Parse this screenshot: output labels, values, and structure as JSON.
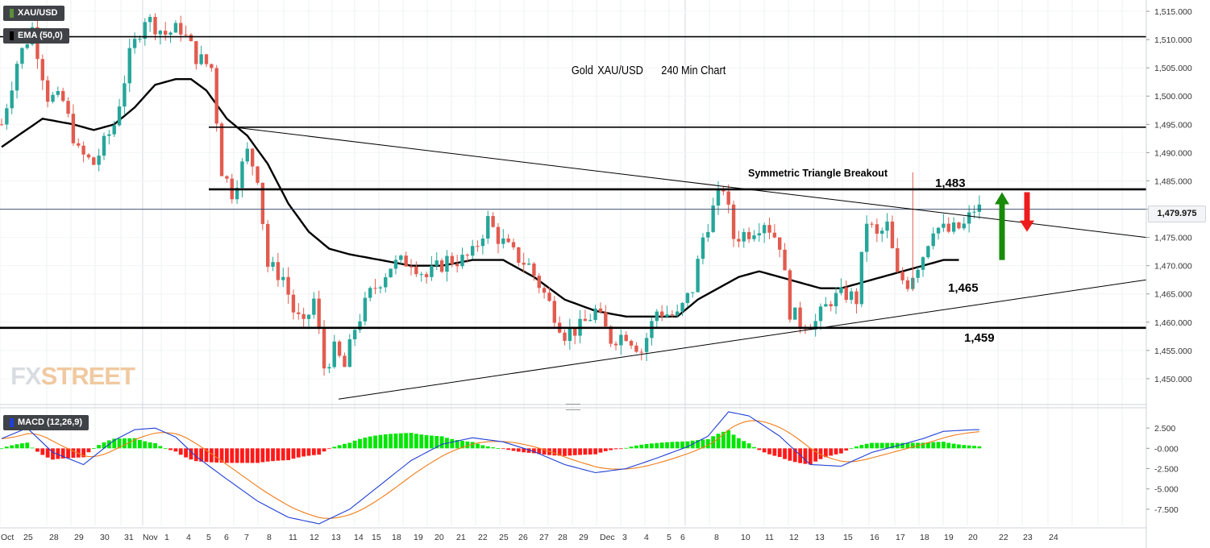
{
  "symbol": "XAU/USD",
  "indicator": "EMA (50,0)",
  "macd_label": "MACD (12,26,9)",
  "watermark": {
    "fx": "FX",
    "street": "STREET"
  },
  "title": {
    "a": "Gold",
    "b": "XAU/USD",
    "c": "240 Min Chart"
  },
  "annotations": {
    "breakout": "Symmetric Triangle Breakout",
    "lvl1483": "1,483",
    "lvl1465": "1,465",
    "lvl1459": "1,459"
  },
  "last_price": "1,479.975",
  "colors": {
    "up": "#26a69a",
    "down": "#e25b4f",
    "ema": "#000000",
    "macd_pos": "#00e600",
    "macd_neg": "#ff1a1a",
    "macd_line": "#1f3fd6",
    "signal_line": "#f07d1a",
    "arrow_up": "#1a8a0a",
    "arrow_down": "#ee1c1c"
  },
  "chart_data": {
    "type": "candlestick",
    "price_axis": {
      "ticks": [
        "1,515.000",
        "1,510.000",
        "1,505.000",
        "1,500.000",
        "1,495.000",
        "1,490.000",
        "1,485.000",
        "1,480.000",
        "1,475.000",
        "1,470.000",
        "1,465.000",
        "1,460.000",
        "1,455.000",
        "1,450.000"
      ],
      "values": [
        1515,
        1510,
        1505,
        1500,
        1495,
        1490,
        1485,
        1480,
        1475,
        1470,
        1465,
        1460,
        1455,
        1450
      ],
      "range": [
        1446,
        1517
      ]
    },
    "macd_axis": {
      "ticks": [
        "2.500",
        "-0.000",
        "-2.500",
        "-5.000",
        "-7.500"
      ],
      "values": [
        2.5,
        0,
        -2.5,
        -5,
        -7.5
      ],
      "range": [
        -9.5,
        4.8
      ]
    },
    "time_axis": [
      "Oct",
      "25",
      "28",
      "29",
      "30",
      "31",
      "Nov",
      "1",
      "4",
      "5",
      "6",
      "7",
      "8",
      "11",
      "12",
      "13",
      "14",
      "15",
      "18",
      "19",
      "20",
      "21",
      "22",
      "25",
      "26",
      "27",
      "28",
      "29",
      "Dec",
      "3",
      "4",
      "5",
      "6",
      "8",
      "10",
      "11",
      "12",
      "13",
      "15",
      "16",
      "17",
      "18",
      "19",
      "20",
      "22",
      "23",
      "24"
    ],
    "anchors": [
      [
        0,
        1495
      ],
      [
        3,
        1506
      ],
      [
        6,
        1512
      ],
      [
        9,
        1500
      ],
      [
        12,
        1499
      ],
      [
        15,
        1490
      ],
      [
        18,
        1488
      ],
      [
        22,
        1495
      ],
      [
        25,
        1507
      ],
      [
        28,
        1514
      ],
      [
        32,
        1511
      ],
      [
        35,
        1512
      ],
      [
        38,
        1507
      ],
      [
        41,
        1505
      ],
      [
        43,
        1487
      ],
      [
        45,
        1483
      ],
      [
        48,
        1490
      ],
      [
        50,
        1486
      ],
      [
        52,
        1470
      ],
      [
        55,
        1468
      ],
      [
        57,
        1462
      ],
      [
        59,
        1459
      ],
      [
        61,
        1464
      ],
      [
        63,
        1452
      ],
      [
        65,
        1455
      ],
      [
        67,
        1452
      ],
      [
        69,
        1459
      ],
      [
        72,
        1465
      ],
      [
        76,
        1470
      ],
      [
        80,
        1471
      ],
      [
        83,
        1468
      ],
      [
        87,
        1471
      ],
      [
        90,
        1471
      ],
      [
        92,
        1472
      ],
      [
        95,
        1478
      ],
      [
        97,
        1475
      ],
      [
        100,
        1472
      ],
      [
        103,
        1470
      ],
      [
        106,
        1465
      ],
      [
        110,
        1458
      ],
      [
        113,
        1459
      ],
      [
        116,
        1462
      ],
      [
        119,
        1457
      ],
      [
        122,
        1458
      ],
      [
        125,
        1455
      ],
      [
        128,
        1462
      ],
      [
        132,
        1461
      ],
      [
        135,
        1466
      ],
      [
        137,
        1475
      ],
      [
        139,
        1480
      ],
      [
        141,
        1484
      ],
      [
        143,
        1475
      ],
      [
        146,
        1476
      ],
      [
        149,
        1478
      ],
      [
        152,
        1474
      ],
      [
        154,
        1462
      ],
      [
        156,
        1460
      ],
      [
        159,
        1460
      ],
      [
        162,
        1464
      ],
      [
        165,
        1465
      ],
      [
        167,
        1464
      ],
      [
        169,
        1478
      ],
      [
        171,
        1475
      ],
      [
        173,
        1477
      ],
      [
        175,
        1468
      ],
      [
        177,
        1467
      ],
      [
        180,
        1472
      ],
      [
        182,
        1477
      ],
      [
        185,
        1476
      ],
      [
        188,
        1477
      ],
      [
        190,
        1480
      ]
    ],
    "ema_anchors": [
      [
        0,
        1491
      ],
      [
        8,
        1496
      ],
      [
        14,
        1495
      ],
      [
        18,
        1494
      ],
      [
        22,
        1495
      ],
      [
        26,
        1498
      ],
      [
        30,
        1502
      ],
      [
        34,
        1503
      ],
      [
        37,
        1503
      ],
      [
        40,
        1501
      ],
      [
        44,
        1496
      ],
      [
        48,
        1493
      ],
      [
        52,
        1488
      ],
      [
        56,
        1481
      ],
      [
        60,
        1476
      ],
      [
        64,
        1473
      ],
      [
        68,
        1472
      ],
      [
        74,
        1471
      ],
      [
        80,
        1470
      ],
      [
        86,
        1470
      ],
      [
        92,
        1471
      ],
      [
        98,
        1471
      ],
      [
        104,
        1468
      ],
      [
        110,
        1464
      ],
      [
        116,
        1462
      ],
      [
        122,
        1461
      ],
      [
        128,
        1461
      ],
      [
        132,
        1461
      ],
      [
        136,
        1464
      ],
      [
        140,
        1466
      ],
      [
        144,
        1468
      ],
      [
        148,
        1469
      ],
      [
        152,
        1468
      ],
      [
        156,
        1467
      ],
      [
        160,
        1466
      ],
      [
        164,
        1466
      ],
      [
        168,
        1467
      ],
      [
        172,
        1468
      ],
      [
        176,
        1469
      ],
      [
        180,
        1470
      ],
      [
        184,
        1471
      ],
      [
        187,
        1471
      ]
    ],
    "horizontal_levels": [
      1510.5,
      1494.5,
      1483.5,
      1459
    ],
    "trendlines": [
      {
        "from": [
          1494.5,
          43
        ],
        "to": [
          1475,
          210
        ]
      },
      {
        "from": [
          1446.4,
          62
        ],
        "to": [
          1467.5,
          210
        ]
      }
    ],
    "last_price": 1479.975,
    "arrows": [
      {
        "dir": "up",
        "from": 1471,
        "to": 1483
      },
      {
        "dir": "down",
        "from": 1483,
        "to": 1476
      }
    ],
    "macd_anchors": [
      [
        0,
        1.2
      ],
      [
        5,
        2.5
      ],
      [
        10,
        -0.5
      ],
      [
        16,
        -2
      ],
      [
        22,
        1
      ],
      [
        26,
        2.3
      ],
      [
        30,
        2.5
      ],
      [
        34,
        1.4
      ],
      [
        38,
        -1
      ],
      [
        44,
        -3.8
      ],
      [
        50,
        -6.5
      ],
      [
        56,
        -8.5
      ],
      [
        62,
        -9.3
      ],
      [
        68,
        -7.5
      ],
      [
        74,
        -4.5
      ],
      [
        80,
        -1.5
      ],
      [
        86,
        0.5
      ],
      [
        92,
        1.3
      ],
      [
        98,
        0.8
      ],
      [
        104,
        -0.4
      ],
      [
        110,
        -2
      ],
      [
        116,
        -3
      ],
      [
        122,
        -2.5
      ],
      [
        128,
        -1.2
      ],
      [
        134,
        0.2
      ],
      [
        138,
        1.5
      ],
      [
        142,
        4.5
      ],
      [
        146,
        4
      ],
      [
        152,
        1.5
      ],
      [
        158,
        -2
      ],
      [
        164,
        -2.2
      ],
      [
        170,
        -0.5
      ],
      [
        176,
        0.5
      ],
      [
        180,
        1.2
      ],
      [
        184,
        2.1
      ],
      [
        190,
        2.3
      ]
    ]
  }
}
